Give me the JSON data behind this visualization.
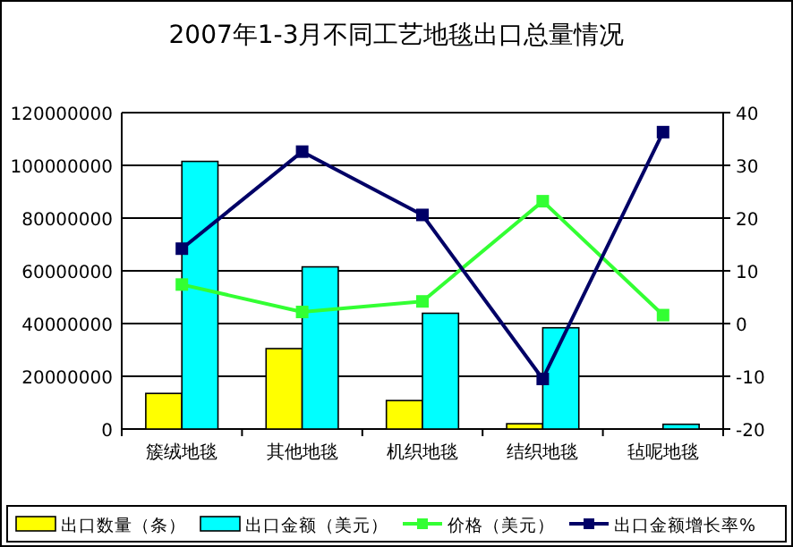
{
  "chart_data": {
    "type": "bar",
    "title": "2007年1-3月不同工艺地毯出口总量情况",
    "categories": [
      "簇绒地毯",
      "其他地毯",
      "机织地毯",
      "结织地毯",
      "毡呢地毯"
    ],
    "series": [
      {
        "name": "出口数量（条）",
        "color": "#ffff00",
        "values": [
          13500000,
          30500000,
          10800000,
          2000000,
          null
        ]
      },
      {
        "name": "出口金额（美元）",
        "color": "#00ffff",
        "values": [
          101500000,
          61500000,
          43900000,
          38400000,
          1800000
        ]
      },
      {
        "name": "价格（美元）",
        "type": "line",
        "axis": "y2",
        "color": "#33ff33",
        "values": [
          7.4,
          2.2,
          4.2,
          23.2,
          1.6
        ]
      },
      {
        "name": "出口金额增长率%",
        "type": "line",
        "axis": "y2",
        "color": "#000066",
        "values": [
          14.2,
          32.6,
          20.6,
          -10.5,
          36.3
        ]
      }
    ],
    "ylim": [
      0,
      120000000
    ],
    "yticks": [
      0,
      20000000,
      40000000,
      60000000,
      80000000,
      100000000,
      120000000
    ],
    "y2lim": [
      -20,
      40
    ],
    "y2ticks": [
      -20,
      -10,
      0,
      10,
      20,
      30,
      40
    ],
    "grid": "y",
    "legend": "bottom",
    "marker": "square",
    "line_style": "solid"
  }
}
